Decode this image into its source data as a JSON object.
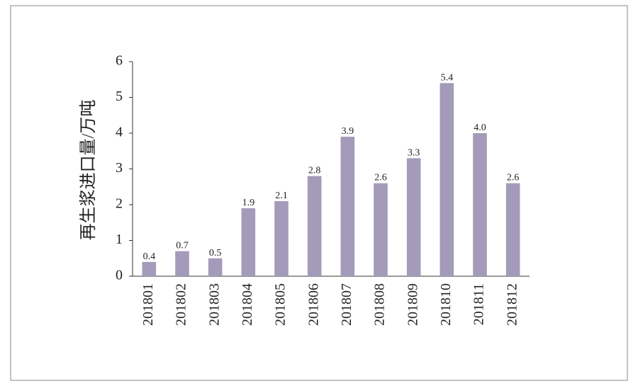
{
  "chart_data": {
    "type": "bar",
    "y_label": "再生浆进口量/万吨",
    "categories": [
      "201801",
      "201802",
      "201803",
      "201804",
      "201805",
      "201806",
      "201807",
      "201808",
      "201809",
      "201810",
      "201811",
      "201812"
    ],
    "values": [
      0.4,
      0.7,
      0.5,
      1.9,
      2.1,
      2.8,
      3.9,
      2.6,
      3.3,
      5.4,
      4.0,
      2.6
    ],
    "value_labels": [
      "0.4",
      "0.7",
      "0.5",
      "1.9",
      "2.1",
      "2.8",
      "3.9",
      "2.6",
      "3.3",
      "5.4",
      "4.0",
      "2.6"
    ],
    "color": "#a39bb9",
    "ylim": [
      0,
      6
    ],
    "yticks": [
      0,
      1,
      2,
      3,
      4,
      5,
      6
    ],
    "grid": false
  }
}
